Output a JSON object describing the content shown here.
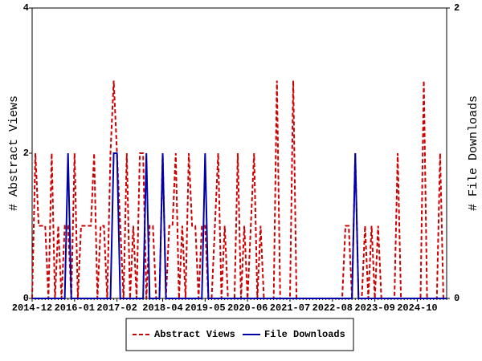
{
  "chart_data": {
    "type": "line",
    "categories": [
      "2014-12",
      null,
      null,
      null,
      null,
      null,
      null,
      null,
      null,
      null,
      null,
      null,
      null,
      "2016-01",
      null,
      null,
      null,
      null,
      null,
      null,
      null,
      null,
      null,
      null,
      null,
      null,
      "2017-02",
      null,
      null,
      null,
      null,
      null,
      null,
      null,
      null,
      null,
      null,
      null,
      null,
      null,
      "2018-04",
      null,
      null,
      null,
      null,
      null,
      null,
      null,
      null,
      null,
      null,
      null,
      null,
      "2019-05",
      null,
      null,
      null,
      null,
      null,
      null,
      null,
      null,
      null,
      null,
      null,
      null,
      "2020-06",
      null,
      null,
      null,
      null,
      null,
      null,
      null,
      null,
      null,
      null,
      null,
      null,
      "2021-07",
      null,
      null,
      null,
      null,
      null,
      null,
      null,
      null,
      null,
      null,
      null,
      null,
      "2022-08",
      null,
      null,
      null,
      null,
      null,
      null,
      null,
      null,
      null,
      null,
      null,
      null,
      "2023-09",
      null,
      null,
      null,
      null,
      null,
      null,
      null,
      null,
      null,
      null,
      null,
      null,
      "2024-10",
      null,
      null,
      null,
      null,
      null,
      null,
      null,
      null,
      null
    ],
    "series": [
      {
        "name": "Abstract Views",
        "color": "#cc0000",
        "axis": "y",
        "values": [
          0,
          2,
          1,
          1,
          1,
          0,
          2,
          0,
          1,
          0,
          1,
          1,
          0,
          2,
          0,
          1,
          1,
          1,
          1,
          2,
          0,
          1,
          1,
          0,
          2,
          3,
          2,
          1,
          0,
          2,
          0,
          1,
          0,
          2,
          2,
          0,
          1,
          1,
          0,
          0,
          2,
          0,
          1,
          1,
          2,
          0,
          1,
          0,
          2,
          1,
          1,
          0,
          1,
          1,
          0,
          0,
          1,
          2,
          0,
          1,
          0,
          0,
          0,
          2,
          0,
          1,
          0,
          1,
          2,
          0,
          1,
          0,
          0,
          0,
          0,
          3,
          0,
          0,
          0,
          0,
          3,
          0,
          0,
          0,
          0,
          0,
          0,
          0,
          0,
          0,
          0,
          0,
          0,
          0,
          0,
          0,
          1,
          1,
          0,
          2,
          0,
          0,
          1,
          0,
          1,
          0,
          1,
          0,
          0,
          0,
          0,
          0,
          2,
          0,
          0,
          0,
          0,
          0,
          0,
          0,
          3,
          0,
          0,
          0,
          0,
          2,
          0,
          0
        ]
      },
      {
        "name": "File Downloads",
        "color": "#0000aa",
        "axis": "y2",
        "values": [
          0,
          0,
          0,
          0,
          0,
          0,
          0,
          0,
          0,
          0,
          0,
          1,
          0,
          0,
          0,
          0,
          0,
          0,
          0,
          0,
          0,
          0,
          0,
          0,
          0,
          1,
          1,
          0,
          0,
          0,
          0,
          0,
          0,
          0,
          0,
          1,
          0,
          0,
          0,
          0,
          1,
          0,
          0,
          0,
          0,
          0,
          0,
          0,
          0,
          0,
          0,
          0,
          0,
          1,
          0,
          0,
          0,
          0,
          0,
          0,
          0,
          0,
          0,
          0,
          0,
          0,
          0,
          0,
          0,
          0,
          0,
          0,
          0,
          0,
          0,
          0,
          0,
          0,
          0,
          0,
          0,
          0,
          0,
          0,
          0,
          0,
          0,
          0,
          0,
          0,
          0,
          0,
          0,
          0,
          0,
          0,
          0,
          0,
          0,
          1,
          0,
          0,
          0,
          0,
          0,
          0,
          0,
          0,
          0,
          0,
          0,
          0,
          0,
          0,
          0,
          0,
          0,
          0,
          0,
          0,
          0,
          0,
          0,
          0,
          0,
          0,
          0,
          0
        ]
      }
    ],
    "ylabel": "# Abstract Views",
    "y2label": "# File Downloads",
    "ylim": [
      0,
      4
    ],
    "yticks": [
      0,
      2,
      4
    ],
    "y2lim": [
      0,
      2
    ],
    "y2ticks": [
      0,
      2
    ],
    "legend": "bottom"
  }
}
